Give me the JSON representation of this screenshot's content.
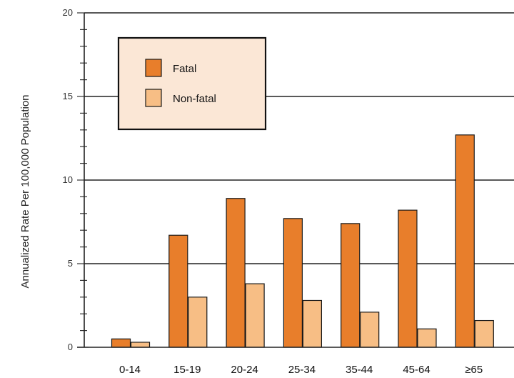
{
  "chart_data": {
    "type": "bar",
    "title": "",
    "xlabel": "",
    "ylabel": "Annualized Rate Per 100,000 Population",
    "ylim": [
      0,
      20
    ],
    "yticks": [
      0,
      5,
      10,
      15,
      20
    ],
    "grid": true,
    "legend_position": "top-left",
    "categories": [
      "0-14",
      "15-19",
      "20-24",
      "25-34",
      "35-44",
      "45-64",
      "≥65"
    ],
    "series": [
      {
        "name": "Fatal",
        "color": "#e87e2b",
        "values": [
          0.5,
          6.7,
          8.9,
          7.7,
          7.4,
          8.2,
          12.7
        ]
      },
      {
        "name": "Non-fatal",
        "color": "#f7be85",
        "values": [
          0.3,
          3.0,
          3.8,
          2.8,
          2.1,
          1.1,
          1.6
        ]
      }
    ],
    "legend_bg": "#fbe7d6"
  }
}
